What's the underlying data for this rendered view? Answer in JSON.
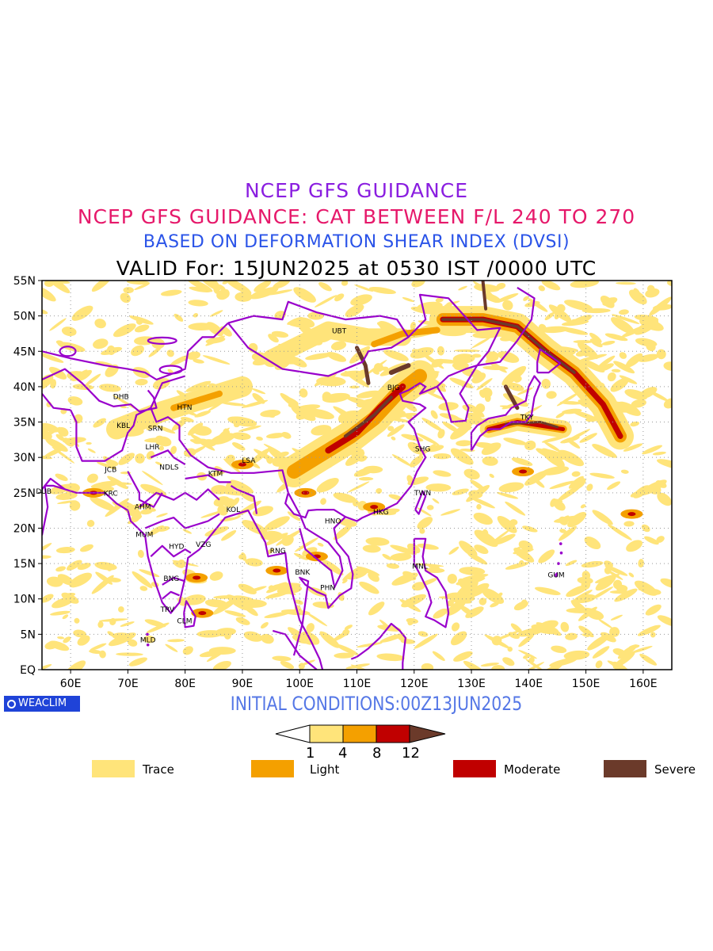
{
  "titles": {
    "line1": "NCEP GFS GUIDANCE",
    "line2": "NCEP GFS GUIDANCE: CAT BETWEEN F/L 240 TO 270",
    "line3": "BASED ON DEFORMATION SHEAR INDEX (DVSI)",
    "line4": "VALID For: 15JUN2025 at 0530 IST /0000 UTC"
  },
  "map": {
    "lon_range": [
      55,
      165
    ],
    "lat_range": [
      0,
      55
    ],
    "lon_ticks": [
      "60E",
      "70E",
      "80E",
      "90E",
      "100E",
      "110E",
      "120E",
      "130E",
      "140E",
      "150E",
      "160E"
    ],
    "lat_ticks": [
      "EQ",
      "5N",
      "10N",
      "15N",
      "20N",
      "25N",
      "30N",
      "35N",
      "40N",
      "45N",
      "50N",
      "55N"
    ],
    "grid": "dotted",
    "colors": {
      "trace": "#ffe47a",
      "light": "#f4a000",
      "moderate": "#c00000",
      "severe": "#6b3a2a",
      "borders": "#9900cc"
    },
    "stations": [
      {
        "code": "UBT",
        "lon": 106.9,
        "lat": 47.9
      },
      {
        "code": "BJG",
        "lon": 116.4,
        "lat": 39.9
      },
      {
        "code": "DHB",
        "lon": 68.8,
        "lat": 38.6
      },
      {
        "code": "HTN",
        "lon": 79.9,
        "lat": 37.1
      },
      {
        "code": "KBL",
        "lon": 69.2,
        "lat": 34.5
      },
      {
        "code": "SRN",
        "lon": 74.8,
        "lat": 34.1
      },
      {
        "code": "LHR",
        "lon": 74.3,
        "lat": 31.5
      },
      {
        "code": "TKY",
        "lon": 139.7,
        "lat": 35.7
      },
      {
        "code": "SHG",
        "lon": 121.5,
        "lat": 31.2
      },
      {
        "code": "LSA",
        "lon": 91.1,
        "lat": 29.6
      },
      {
        "code": "JCB",
        "lon": 67.0,
        "lat": 28.3
      },
      {
        "code": "NDLS",
        "lon": 77.2,
        "lat": 28.6
      },
      {
        "code": "KTM",
        "lon": 85.3,
        "lat": 27.7
      },
      {
        "code": "DUB",
        "lon": 55.3,
        "lat": 25.2
      },
      {
        "code": "KRC",
        "lon": 67.0,
        "lat": 24.9
      },
      {
        "code": "TWN",
        "lon": 121.5,
        "lat": 25.0
      },
      {
        "code": "AHM",
        "lon": 72.6,
        "lat": 23.0
      },
      {
        "code": "KOL",
        "lon": 88.4,
        "lat": 22.6
      },
      {
        "code": "HKG",
        "lon": 114.2,
        "lat": 22.3
      },
      {
        "code": "HNO",
        "lon": 105.8,
        "lat": 21.0
      },
      {
        "code": "MUM",
        "lon": 72.9,
        "lat": 19.1
      },
      {
        "code": "HYD",
        "lon": 78.5,
        "lat": 17.4
      },
      {
        "code": "VZG",
        "lon": 83.2,
        "lat": 17.7
      },
      {
        "code": "RNG",
        "lon": 96.2,
        "lat": 16.8
      },
      {
        "code": "MNL",
        "lon": 121.0,
        "lat": 14.6
      },
      {
        "code": "GUM",
        "lon": 144.8,
        "lat": 13.4
      },
      {
        "code": "BNK",
        "lon": 100.5,
        "lat": 13.8
      },
      {
        "code": "BNG",
        "lon": 77.6,
        "lat": 12.9
      },
      {
        "code": "PHN",
        "lon": 104.9,
        "lat": 11.6
      },
      {
        "code": "TRV",
        "lon": 76.9,
        "lat": 8.5
      },
      {
        "code": "CLM",
        "lon": 79.9,
        "lat": 6.9
      },
      {
        "code": "MLD",
        "lon": 73.5,
        "lat": 4.2
      }
    ]
  },
  "colorbar": {
    "levels": [
      "1",
      "4",
      "8",
      "12"
    ]
  },
  "legend": [
    {
      "label": "Trace",
      "color": "#ffe47a"
    },
    {
      "label": "Light",
      "color": "#f4a000"
    },
    {
      "label": "Moderate",
      "color": "#c00000"
    },
    {
      "label": "Severe",
      "color": "#6b3a2a"
    }
  ],
  "footer": {
    "initial": "INITIAL CONDITIONS:00Z13JUN2025",
    "brand": "WEACLIM"
  }
}
